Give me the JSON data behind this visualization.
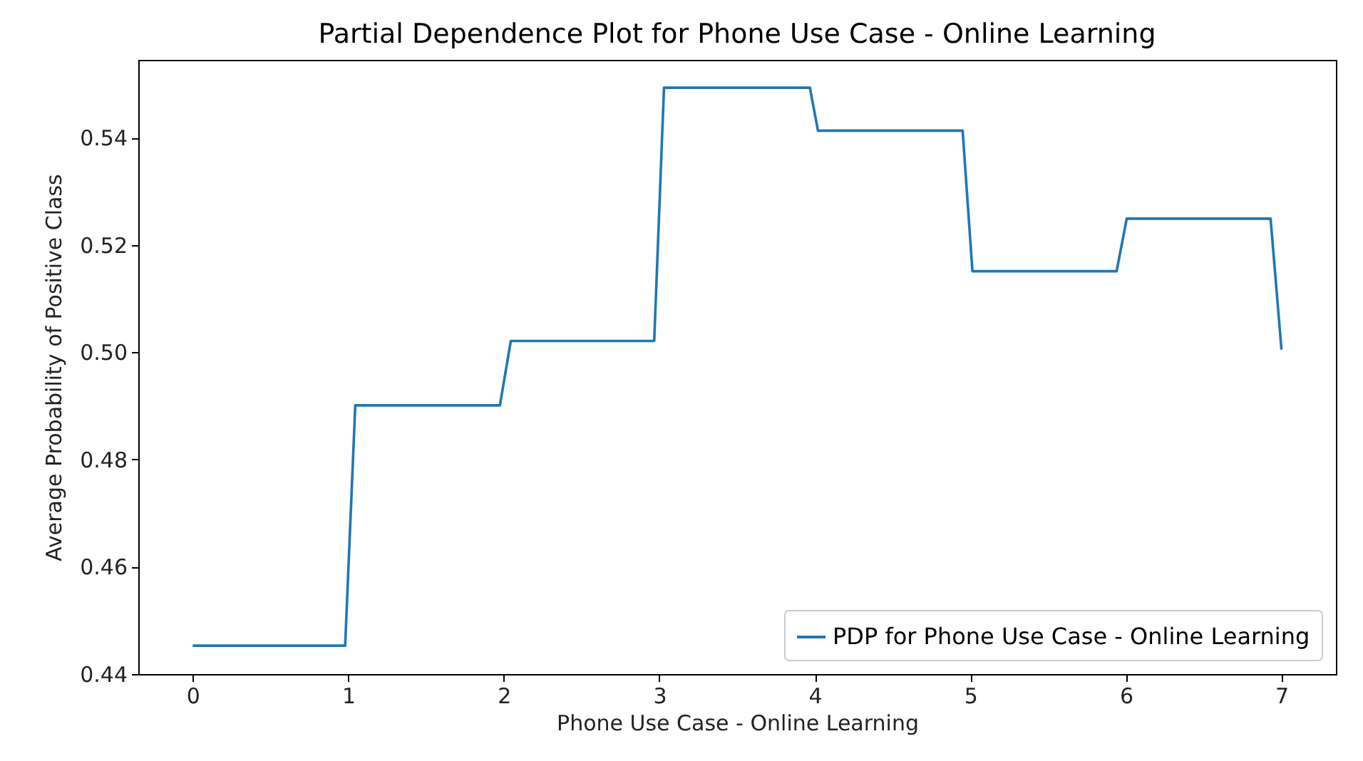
{
  "chart_data": {
    "type": "line",
    "title": "Partial Dependence Plot for Phone Use Case - Online Learning",
    "xlabel": "Phone Use Case - Online Learning",
    "ylabel": "Average Probability of Positive Class",
    "x": [
      0,
      0.98,
      1.045,
      1.975,
      2.045,
      2.967,
      3.03,
      3.968,
      4.02,
      4.95,
      5.013,
      5.94,
      6.005,
      6.93,
      7
    ],
    "series": [
      {
        "name": "PDP for Phone Use Case - Online Learning",
        "color": "#1f77b4",
        "values": [
          0.4453,
          0.4453,
          0.4901,
          0.4901,
          0.5021,
          0.5021,
          0.5493,
          0.5493,
          0.5413,
          0.5413,
          0.5151,
          0.5151,
          0.5249,
          0.5249,
          0.5005
        ]
      }
    ],
    "xlim": [
      -0.35,
      7.35
    ],
    "ylim": [
      0.44,
      0.5545
    ],
    "xticks": [
      0,
      1,
      2,
      3,
      4,
      5,
      6,
      7
    ],
    "yticks": [
      {
        "value": 0.44,
        "label": "0.44"
      },
      {
        "value": 0.46,
        "label": "0.46"
      },
      {
        "value": 0.48,
        "label": "0.48"
      },
      {
        "value": 0.5,
        "label": "0.50"
      },
      {
        "value": 0.52,
        "label": "0.52"
      },
      {
        "value": 0.54,
        "label": "0.54"
      }
    ],
    "legend": "bottom right",
    "grid": false,
    "marker": "none",
    "line_style": "solid"
  }
}
